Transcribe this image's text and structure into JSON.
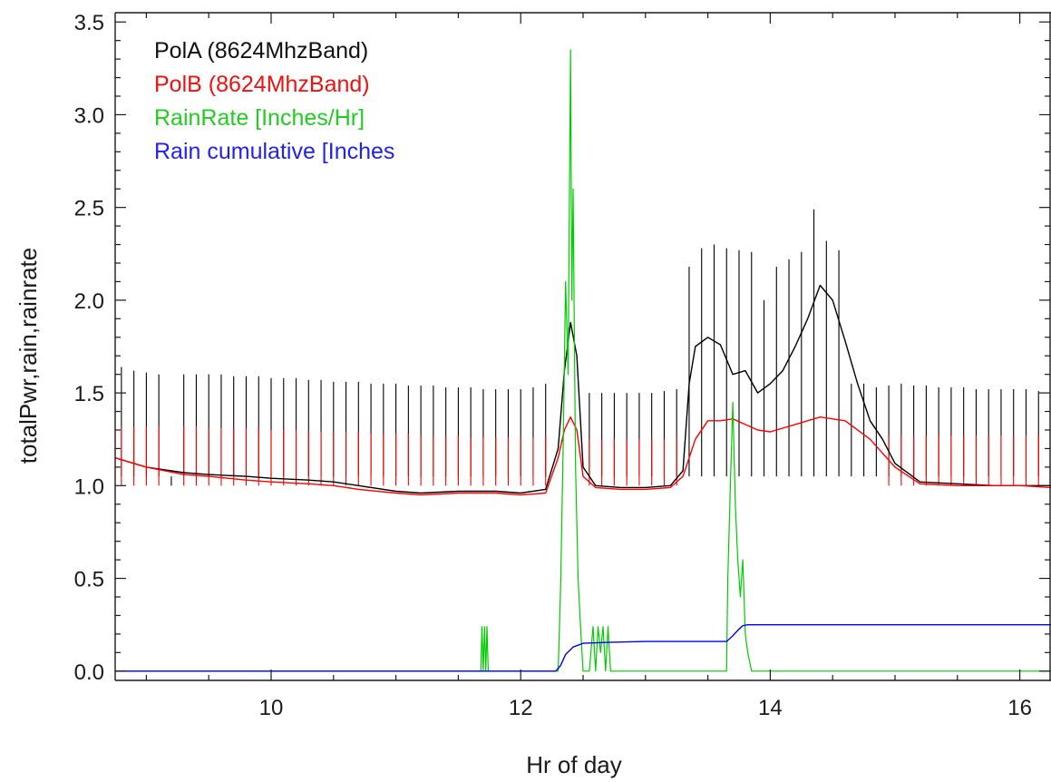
{
  "chart_data": {
    "type": "line",
    "xlabel": "Hr of day",
    "ylabel": "totalPwr,rain,rainrate",
    "xlim": [
      8.75,
      16.25
    ],
    "ylim": [
      -0.05,
      3.55
    ],
    "x_ticks": [
      10,
      12,
      14,
      16
    ],
    "x_tick_labels": [
      "10",
      "12",
      "14",
      "16"
    ],
    "y_ticks": [
      0.0,
      0.5,
      1.0,
      1.5,
      2.0,
      2.5,
      3.0,
      3.5
    ],
    "y_tick_labels": [
      "0.0",
      "0.5",
      "1.0",
      "1.5",
      "2.0",
      "2.5",
      "3.0",
      "3.5"
    ],
    "grid": false,
    "legend_position": "top-left",
    "series": [
      {
        "name": "PolA (8624MhzBand)",
        "color": "#000000",
        "x": [
          8.75,
          9.0,
          9.3,
          9.5,
          9.8,
          10.0,
          10.3,
          10.5,
          10.7,
          11.0,
          11.2,
          11.5,
          11.8,
          12.0,
          12.2,
          12.3,
          12.35,
          12.4,
          12.45,
          12.5,
          12.6,
          12.8,
          13.0,
          13.2,
          13.3,
          13.35,
          13.4,
          13.5,
          13.6,
          13.7,
          13.8,
          13.9,
          14.0,
          14.1,
          14.2,
          14.3,
          14.4,
          14.5,
          14.6,
          14.7,
          14.8,
          14.9,
          15.0,
          15.2,
          15.5,
          15.8,
          16.0,
          16.25
        ],
        "y": [
          1.15,
          1.1,
          1.07,
          1.06,
          1.05,
          1.04,
          1.03,
          1.02,
          1.0,
          0.97,
          0.96,
          0.97,
          0.97,
          0.96,
          0.98,
          1.2,
          1.62,
          1.88,
          1.7,
          1.1,
          1.0,
          0.99,
          0.99,
          1.0,
          1.08,
          1.55,
          1.75,
          1.8,
          1.76,
          1.6,
          1.62,
          1.5,
          1.55,
          1.62,
          1.75,
          1.9,
          2.08,
          2.0,
          1.78,
          1.55,
          1.35,
          1.25,
          1.12,
          1.02,
          1.01,
          1.0,
          1.0,
          1.0
        ]
      },
      {
        "name": "PolB (8624MhzBand)",
        "color": "#ff0000",
        "x": [
          8.75,
          9.0,
          9.3,
          9.5,
          9.8,
          10.0,
          10.3,
          10.5,
          10.7,
          11.0,
          11.2,
          11.5,
          11.8,
          12.0,
          12.2,
          12.3,
          12.35,
          12.4,
          12.45,
          12.5,
          12.6,
          12.8,
          13.0,
          13.2,
          13.3,
          13.35,
          13.4,
          13.5,
          13.6,
          13.7,
          13.8,
          13.9,
          14.0,
          14.2,
          14.4,
          14.6,
          14.8,
          15.0,
          15.2,
          15.5,
          15.8,
          16.0,
          16.25
        ],
        "y": [
          1.15,
          1.1,
          1.06,
          1.05,
          1.03,
          1.02,
          1.01,
          1.0,
          0.98,
          0.96,
          0.95,
          0.96,
          0.96,
          0.95,
          0.96,
          1.15,
          1.3,
          1.37,
          1.3,
          1.05,
          0.99,
          0.98,
          0.98,
          0.99,
          1.05,
          1.15,
          1.25,
          1.35,
          1.35,
          1.36,
          1.33,
          1.3,
          1.29,
          1.33,
          1.37,
          1.35,
          1.25,
          1.1,
          1.01,
          1.0,
          1.0,
          1.0,
          0.99
        ]
      },
      {
        "name": "RainRate [Inches/Hr]",
        "color": "#00cc00",
        "x": [
          8.75,
          11.68,
          11.69,
          11.7,
          11.71,
          11.72,
          11.73,
          11.74,
          11.75,
          12.3,
          12.32,
          12.34,
          12.36,
          12.38,
          12.4,
          12.41,
          12.42,
          12.43,
          12.44,
          12.46,
          12.48,
          12.5,
          12.55,
          12.58,
          12.6,
          12.62,
          12.64,
          12.66,
          12.68,
          12.7,
          12.72,
          13.65,
          13.66,
          13.68,
          13.7,
          13.72,
          13.74,
          13.76,
          13.78,
          13.8,
          13.82,
          13.85,
          16.25
        ],
        "y": [
          0.0,
          0.0,
          0.24,
          0.0,
          0.24,
          0.0,
          0.24,
          0.0,
          0.0,
          0.0,
          0.45,
          1.2,
          2.1,
          1.6,
          3.35,
          2.0,
          2.6,
          1.8,
          1.1,
          0.5,
          0.24,
          0.0,
          0.0,
          0.24,
          0.0,
          0.24,
          0.1,
          0.24,
          0.0,
          0.24,
          0.0,
          0.0,
          0.5,
          1.0,
          1.45,
          0.9,
          0.6,
          0.4,
          0.6,
          0.2,
          0.1,
          0.0,
          0.0
        ]
      },
      {
        "name": "Rain cumulative [Inches",
        "color": "#0000ee",
        "x": [
          8.75,
          12.28,
          12.32,
          12.36,
          12.42,
          12.46,
          12.5,
          12.7,
          13.0,
          13.65,
          13.7,
          13.74,
          13.78,
          13.82,
          16.25
        ],
        "y": [
          0.0,
          0.0,
          0.03,
          0.09,
          0.13,
          0.14,
          0.15,
          0.155,
          0.16,
          0.16,
          0.19,
          0.22,
          0.245,
          0.25,
          0.25
        ]
      }
    ],
    "spikes": {
      "PolA (8624MhzBand)": {
        "color": "#000000",
        "x": [
          8.8,
          8.9,
          9.0,
          9.1,
          9.2,
          9.3,
          9.4,
          9.5,
          9.6,
          9.7,
          9.8,
          9.9,
          10.0,
          10.1,
          10.2,
          10.3,
          10.4,
          10.5,
          10.6,
          10.7,
          10.8,
          10.9,
          11.0,
          11.1,
          11.2,
          11.3,
          11.4,
          11.5,
          11.6,
          11.7,
          11.8,
          11.9,
          12.0,
          12.1,
          12.2,
          12.55,
          12.65,
          12.75,
          12.85,
          12.95,
          13.05,
          13.15,
          13.25,
          13.35,
          13.45,
          13.55,
          13.65,
          13.75,
          13.85,
          13.95,
          14.05,
          14.15,
          14.25,
          14.35,
          14.45,
          14.55,
          14.65,
          14.75,
          14.85,
          14.95,
          15.05,
          15.15,
          15.25,
          15.35,
          15.45,
          15.55,
          15.65,
          15.75,
          15.85,
          15.95,
          16.05,
          16.15
        ],
        "y": [
          1.64,
          1.62,
          1.61,
          1.6,
          1.0,
          1.6,
          1.6,
          1.6,
          1.6,
          1.59,
          1.59,
          1.59,
          1.58,
          1.58,
          1.58,
          1.57,
          1.57,
          1.56,
          1.56,
          1.56,
          1.55,
          1.55,
          1.55,
          1.54,
          1.54,
          1.54,
          1.53,
          1.53,
          1.53,
          1.52,
          1.52,
          1.52,
          1.52,
          1.53,
          1.55,
          1.5,
          1.5,
          1.5,
          1.5,
          1.5,
          1.5,
          1.51,
          1.52,
          2.18,
          2.28,
          2.3,
          2.28,
          2.27,
          2.26,
          2.0,
          2.18,
          2.22,
          2.26,
          2.49,
          2.32,
          2.27,
          1.55,
          1.55,
          1.53,
          1.54,
          1.55,
          1.54,
          1.54,
          1.53,
          1.53,
          1.53,
          1.52,
          1.52,
          1.52,
          1.52,
          1.52,
          1.51
        ]
      },
      "PolB (8624MhzBand)": {
        "color": "#ff0000",
        "x": [
          8.8,
          8.9,
          9.0,
          9.1,
          9.3,
          9.4,
          9.5,
          9.6,
          9.7,
          9.8,
          9.9,
          10.0,
          10.1,
          10.2,
          10.3,
          10.4,
          10.5,
          10.6,
          10.7,
          10.8,
          10.9,
          11.0,
          11.1,
          11.2,
          11.3,
          11.4,
          11.5,
          11.6,
          11.7,
          11.8,
          11.9,
          12.0,
          12.1,
          12.2,
          12.55,
          12.65,
          12.75,
          12.85,
          12.95,
          13.05,
          13.15,
          13.25,
          14.95,
          15.05,
          15.15,
          15.25,
          15.35,
          15.45,
          15.55,
          15.65,
          15.75,
          15.85,
          15.95,
          16.05,
          16.15
        ],
        "y": [
          1.32,
          1.32,
          1.32,
          1.32,
          1.32,
          1.32,
          1.31,
          1.31,
          1.31,
          1.31,
          1.31,
          1.3,
          1.3,
          1.3,
          1.3,
          1.29,
          1.29,
          1.29,
          1.29,
          1.28,
          1.28,
          1.28,
          1.28,
          1.27,
          1.27,
          1.27,
          1.27,
          1.26,
          1.26,
          1.26,
          1.26,
          1.26,
          1.26,
          1.27,
          1.25,
          1.25,
          1.25,
          1.25,
          1.25,
          1.25,
          1.25,
          1.26,
          1.27,
          1.27,
          1.27,
          1.27,
          1.27,
          1.27,
          1.27,
          1.27,
          1.27,
          1.27,
          1.27,
          1.27,
          1.27
        ]
      }
    }
  }
}
